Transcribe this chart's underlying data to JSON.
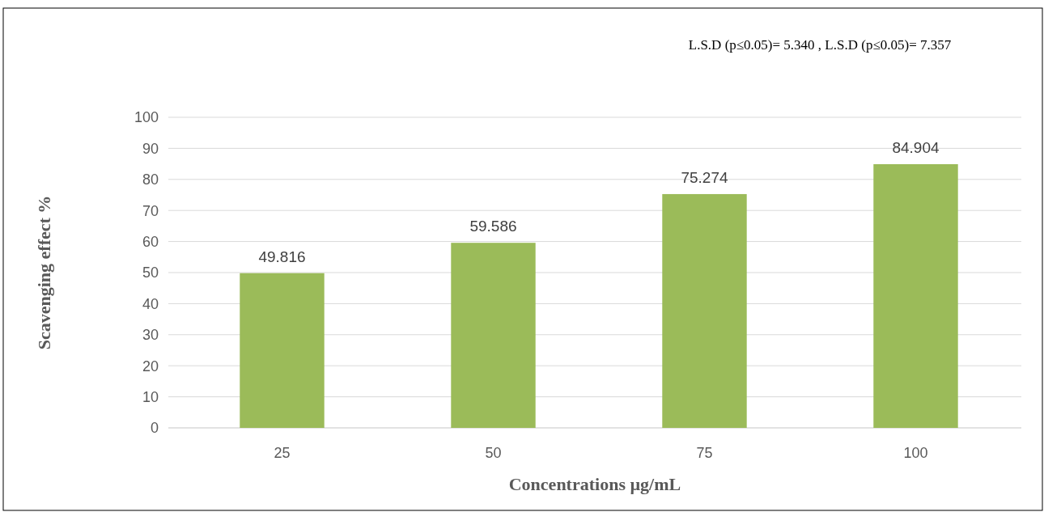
{
  "chart_data": {
    "type": "bar",
    "xlabel": "Concentrations µg/mL",
    "ylabel": "Scavenging effect %",
    "annotations": [
      "L.S.D (p≤0.05)= 5.340 , L.S.D (p≤0.05)= 7.357"
    ],
    "categories": [
      "25",
      "50",
      "75",
      "100"
    ],
    "values": [
      49.816,
      59.586,
      75.274,
      84.904
    ],
    "color": "#9bbb59",
    "ylim": [
      0,
      100
    ],
    "yticks": [
      0,
      10,
      20,
      30,
      40,
      50,
      60,
      70,
      80,
      90,
      100
    ],
    "grid": "y",
    "data_labels": true
  }
}
